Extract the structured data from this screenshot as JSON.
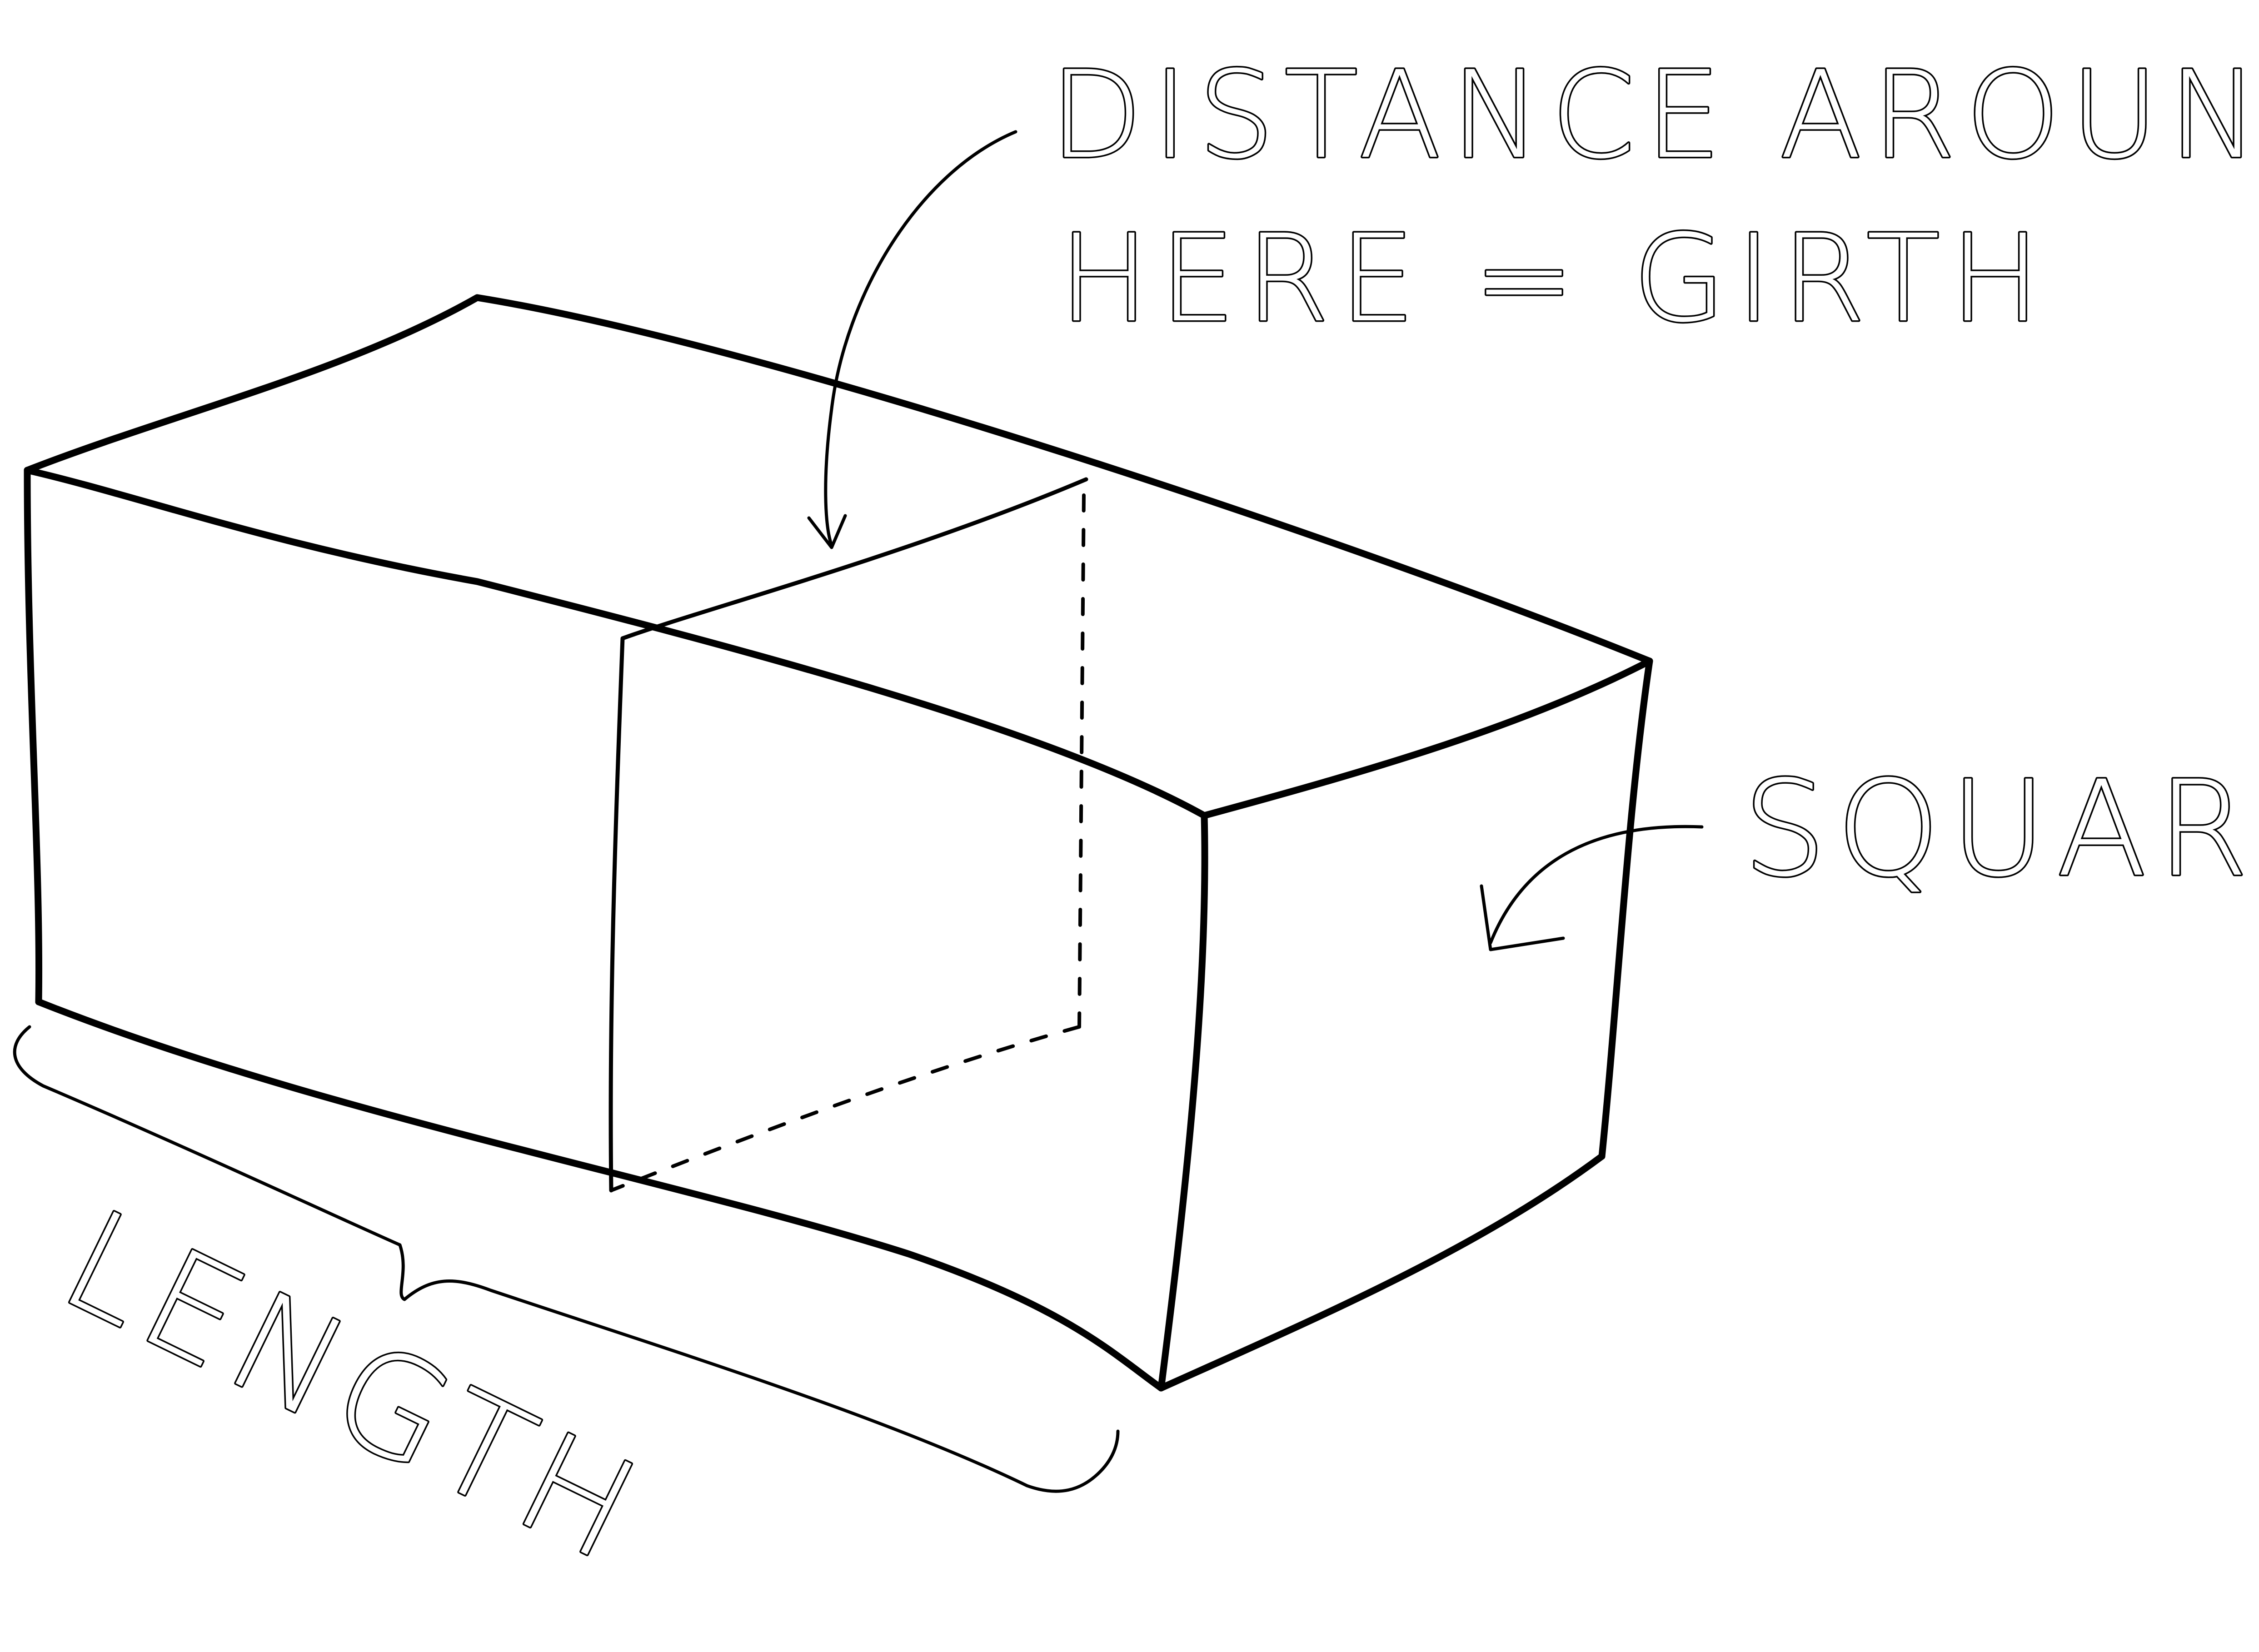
{
  "diagram": {
    "labels": {
      "girth_line1": "DISTANCE AROUND",
      "girth_line2": "HERE = GIRTH",
      "square": "SQUARE",
      "length": "LENGTH"
    },
    "colors": {
      "ink": "#000000",
      "paper": "#ffffff"
    }
  }
}
